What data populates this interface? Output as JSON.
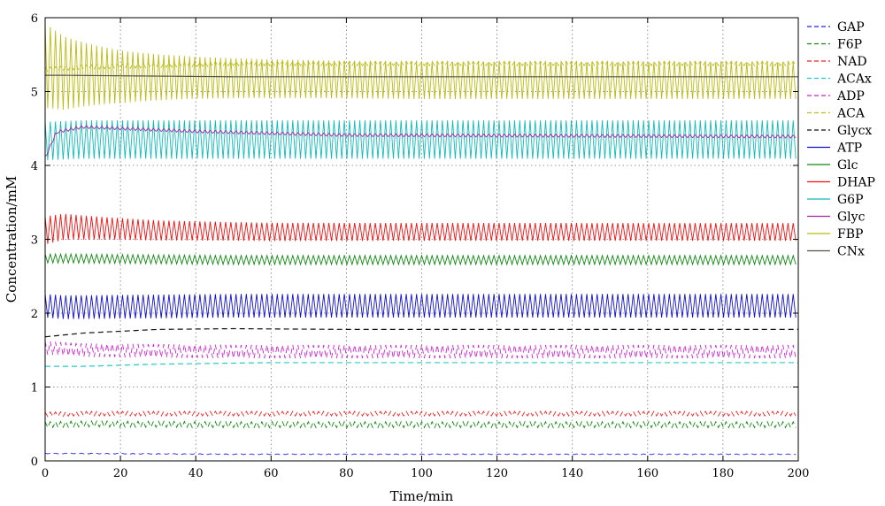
{
  "chart_data": {
    "type": "line",
    "title": "",
    "xlabel": "Time/min",
    "ylabel": "Concentration/mM",
    "xlim": [
      0,
      200
    ],
    "ylim": [
      0,
      6
    ],
    "x_ticks": [
      "0",
      "20",
      "40",
      "60",
      "80",
      "100",
      "120",
      "140",
      "160",
      "180",
      "200"
    ],
    "y_ticks": [
      "0",
      "1",
      "2",
      "3",
      "4",
      "5",
      "6"
    ],
    "grid": true,
    "legend_position": "right",
    "series": [
      {
        "name": "GAP",
        "color": "#2222ee",
        "dash": "dashed",
        "x": [
          0,
          10,
          50,
          100,
          200
        ],
        "y": [
          0.1,
          0.1,
          0.09,
          0.09,
          0.09
        ],
        "oscillation_amplitude": 0.005
      },
      {
        "name": "F6P",
        "color": "#118811",
        "dash": "dashed",
        "x": [
          0,
          10,
          50,
          100,
          200
        ],
        "y": [
          0.49,
          0.5,
          0.49,
          0.49,
          0.49
        ],
        "oscillation_amplitude": 0.04
      },
      {
        "name": "NAD",
        "color": "#ee2222",
        "dash": "dashed",
        "x": [
          0,
          10,
          50,
          100,
          200
        ],
        "y": [
          0.63,
          0.64,
          0.64,
          0.64,
          0.64
        ],
        "oscillation_amplitude": 0.03
      },
      {
        "name": "ACAx",
        "color": "#22cccc",
        "dash": "dashed",
        "x": [
          0,
          10,
          30,
          60,
          100,
          200
        ],
        "y": [
          1.28,
          1.28,
          1.31,
          1.33,
          1.33,
          1.33
        ],
        "oscillation_amplitude": 0
      },
      {
        "name": "ADP",
        "color": "#cc22cc",
        "dash": "dashed",
        "x": [
          0,
          10,
          50,
          100,
          200
        ],
        "y": [
          1.53,
          1.5,
          1.48,
          1.48,
          1.48
        ],
        "oscillation_amplitude": 0.09
      },
      {
        "name": "ACA",
        "color": "#bbbb22",
        "dash": "dashed",
        "x": [
          0,
          10,
          50,
          100,
          200
        ],
        "y": [
          5.3,
          5.33,
          5.38,
          5.38,
          5.38
        ],
        "oscillation_amplitude": 0.03
      },
      {
        "name": "Glycx",
        "color": "#111111",
        "dash": "dashed",
        "x": [
          0,
          10,
          30,
          50,
          80,
          200
        ],
        "y": [
          1.68,
          1.73,
          1.78,
          1.79,
          1.78,
          1.78
        ],
        "oscillation_amplitude": 0
      },
      {
        "name": "ATP",
        "color": "#1111cc",
        "dash": "solid",
        "x": [
          0,
          5,
          50,
          100,
          200
        ],
        "y": [
          2.1,
          2.08,
          2.1,
          2.1,
          2.1
        ],
        "oscillation_amplitude": 0.16
      },
      {
        "name": "Glc",
        "color": "#118811",
        "dash": "solid",
        "x": [
          0,
          5,
          50,
          100,
          200
        ],
        "y": [
          2.74,
          2.74,
          2.72,
          2.72,
          2.72
        ],
        "oscillation_amplitude": 0.06
      },
      {
        "name": "DHAP",
        "color": "#ee1111",
        "dash": "solid",
        "x": [
          0,
          5,
          30,
          60,
          100,
          200
        ],
        "y": [
          3.12,
          3.17,
          3.12,
          3.1,
          3.1,
          3.1
        ],
        "oscillation_amplitude": 0.12
      },
      {
        "name": "G6P",
        "color": "#11bbbb",
        "dash": "solid",
        "x": [
          0,
          10,
          50,
          100,
          200
        ],
        "y": [
          4.33,
          4.35,
          4.35,
          4.35,
          4.35
        ],
        "oscillation_amplitude": 0.26
      },
      {
        "name": "Glyc",
        "color": "#aa22aa",
        "dash": "solid",
        "x": [
          0,
          3,
          10,
          40,
          80,
          200
        ],
        "y": [
          4.1,
          4.45,
          4.52,
          4.46,
          4.41,
          4.39
        ],
        "oscillation_amplitude": 0.02
      },
      {
        "name": "FBP",
        "color": "#bbbb11",
        "dash": "solid",
        "x": [
          0,
          5,
          20,
          50,
          100,
          200
        ],
        "y": [
          5.35,
          5.25,
          5.2,
          5.18,
          5.15,
          5.15
        ],
        "oscillation_amplitude": 0.25
      },
      {
        "name": "CNx",
        "color": "#555544",
        "dash": "solid",
        "x": [
          0,
          5,
          50,
          100,
          200
        ],
        "y": [
          5.22,
          5.22,
          5.2,
          5.2,
          5.2
        ],
        "oscillation_amplitude": 0
      }
    ]
  }
}
